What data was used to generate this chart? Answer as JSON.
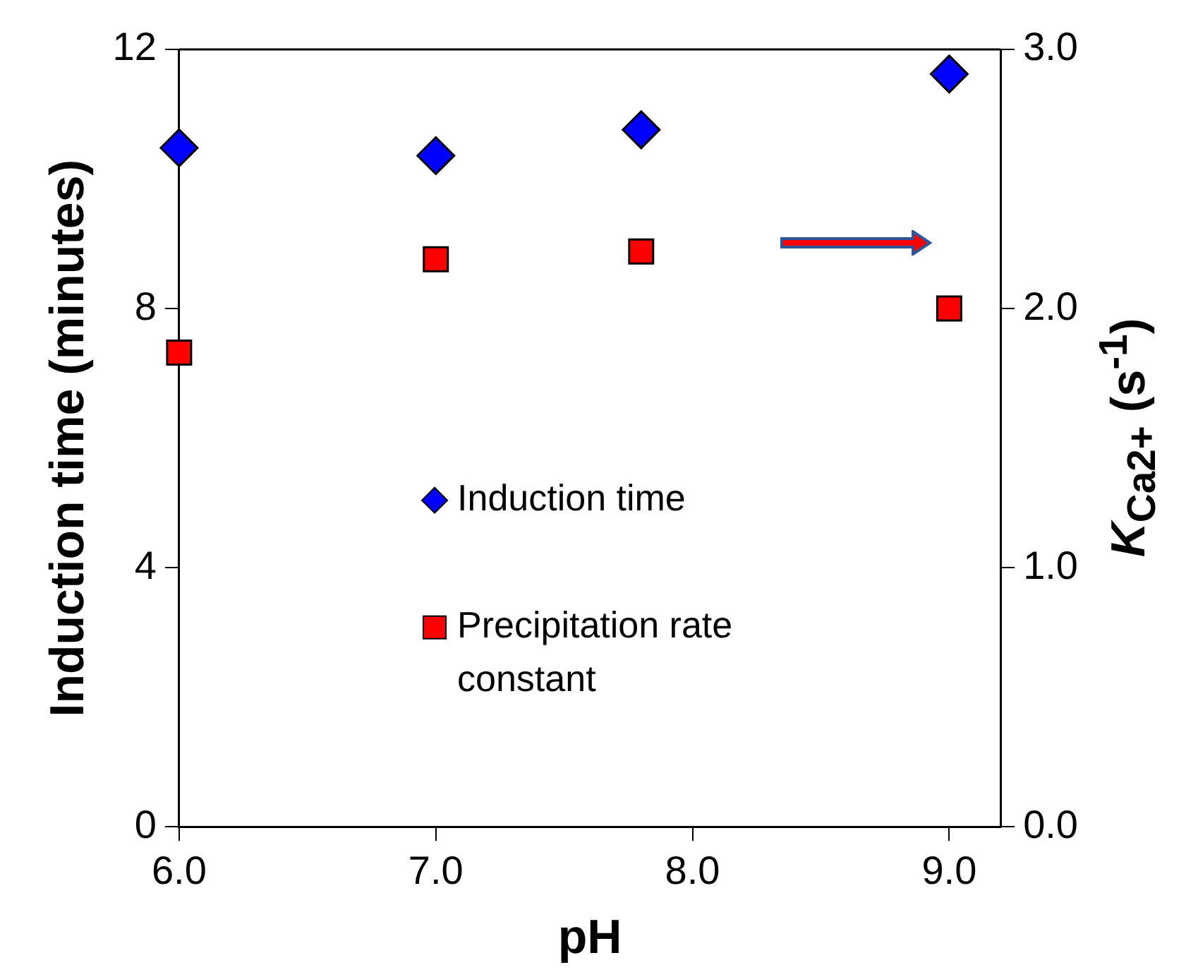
{
  "chart_data": {
    "type": "scatter",
    "xlabel": "pH",
    "ylabel": "Induction time (minutes)",
    "y2label": "K$_{Ca2+}$ (s$^{-1}$)",
    "x": [
      6.0,
      7.0,
      7.8,
      9.0
    ],
    "series": [
      {
        "name": "Induction time",
        "color": "#0000ff",
        "marker": "diamond",
        "values": [
          10.48,
          10.36,
          10.76,
          11.62
        ]
      },
      {
        "name": "Precipitation rate constant",
        "color": "#ff0000",
        "marker": "square",
        "axis": "y2",
        "values": [
          1.83,
          2.19,
          2.22,
          2.0
        ]
      }
    ],
    "xlim": [
      6.0,
      9.2
    ],
    "xticks": [
      {
        "value": 6,
        "label": "6.0"
      },
      {
        "value": 7,
        "label": "7.0"
      },
      {
        "value": 8,
        "label": "8.0"
      },
      {
        "value": 9,
        "label": "9.0"
      }
    ],
    "ylim": [
      0,
      12
    ],
    "yticks": [
      0,
      4,
      8,
      12
    ],
    "y2lim": [
      0,
      3
    ],
    "y2ticks": [
      {
        "value": 0,
        "label": "0.0"
      },
      {
        "value": 1,
        "label": "1.0"
      },
      {
        "value": 2,
        "label": "2.0"
      },
      {
        "value": 3,
        "label": "3.0"
      }
    ],
    "grid": false,
    "legend": "center"
  }
}
